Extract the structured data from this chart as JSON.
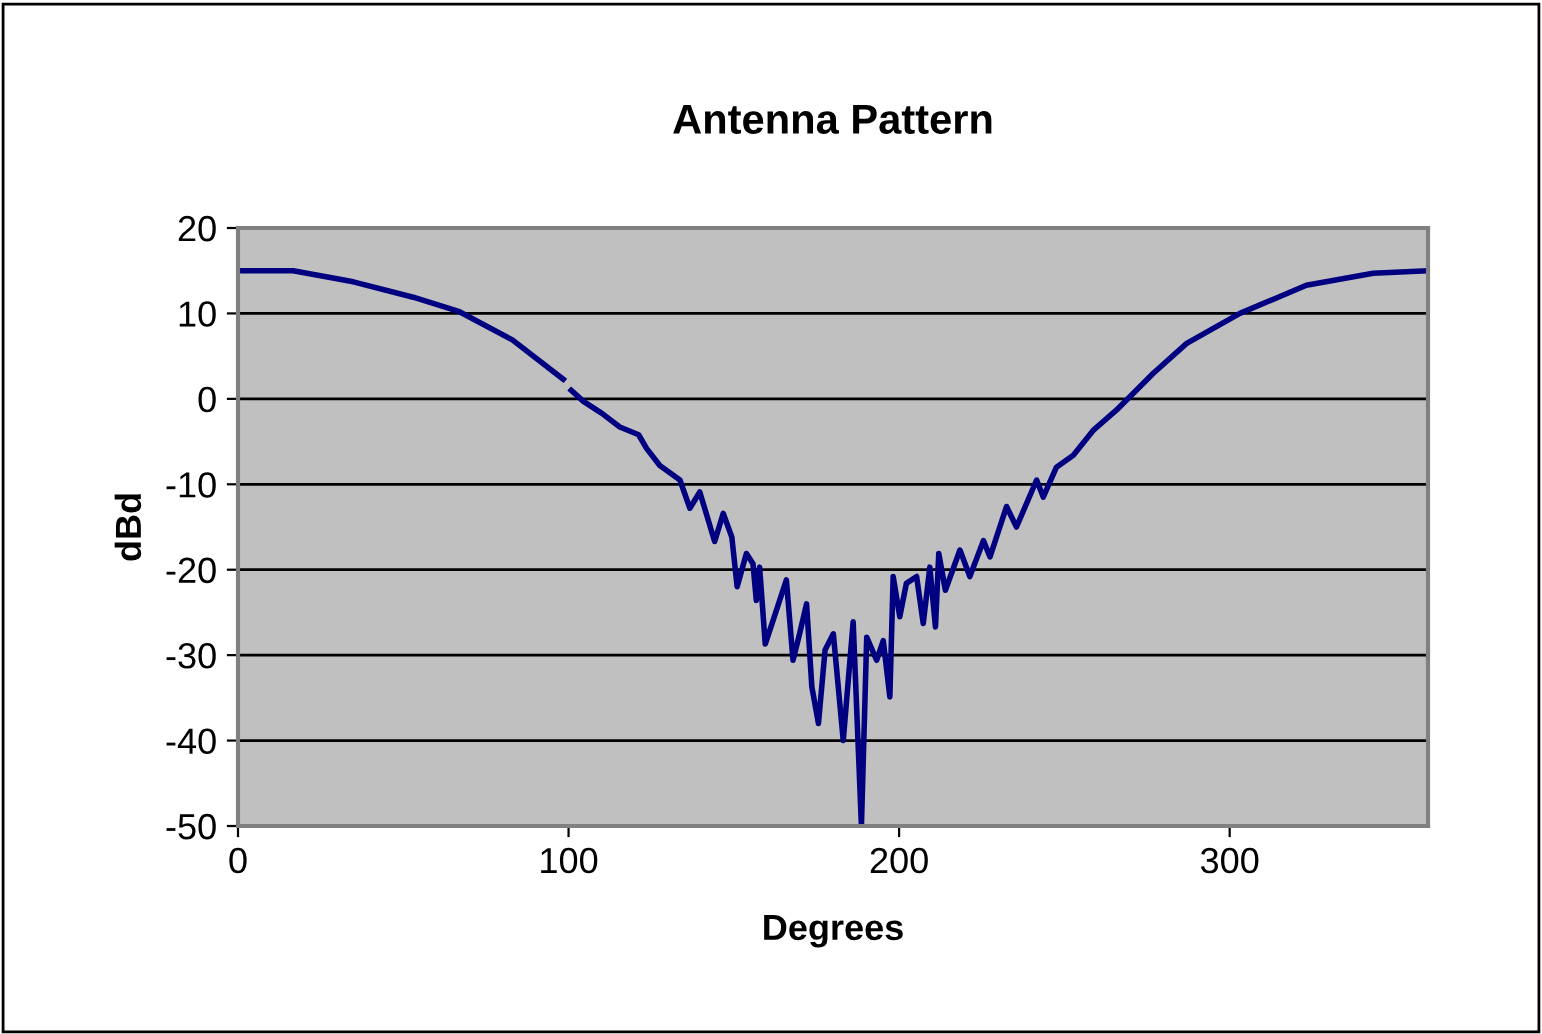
{
  "chart_data": {
    "type": "line",
    "title": "Antenna Pattern",
    "xlabel": "Degrees",
    "ylabel": "dBd",
    "xlim": [
      0,
      360
    ],
    "xticks": [
      0,
      100,
      200,
      300
    ],
    "ylim": [
      -50,
      20
    ],
    "yticks": [
      -50,
      -40,
      -30,
      -20,
      -10,
      0,
      10,
      20
    ],
    "grid": "y",
    "legend": false,
    "series": [
      {
        "color": "#000080",
        "x": [
          0,
          16.7,
          34.9,
          53,
          67,
          83,
          98.4,
          99.5,
          100.8,
          104.5,
          110.1,
          115.5,
          121.2,
          123.6,
          127.6,
          133.7,
          136.7,
          139.7,
          144.2,
          146.8,
          149.4,
          151,
          153.8,
          155.8,
          156.8,
          157.8,
          159.5,
          161.9,
          165.9,
          167.9,
          169.9,
          172,
          173.6,
          175.6,
          177.6,
          180.1,
          183.1,
          186.1,
          188.6,
          190.2,
          193.2,
          195.2,
          197.2,
          198.2,
          200.2,
          202.2,
          205.3,
          207.3,
          209.3,
          211,
          212,
          214,
          218.4,
          221.4,
          225.5,
          227.5,
          232.5,
          235.5,
          241.6,
          243.6,
          247.6,
          252.7,
          258.7,
          265.8,
          276.9,
          287,
          303.1,
          323.2,
          343.4,
          360
        ],
        "values": [
          15,
          15,
          13.7,
          11.9,
          10.2,
          6.9,
          2.3,
          null,
          1.0,
          -0.3,
          -1.7,
          -3.3,
          -4.2,
          -5.8,
          -7.8,
          -9.5,
          -12.8,
          -10.9,
          -16.7,
          -13.4,
          -16.2,
          -22.0,
          -18.1,
          -19.3,
          -23.6,
          -19.7,
          -28.7,
          -25.9,
          -21.2,
          -30.6,
          -27.5,
          -24.0,
          -33.7,
          -38.0,
          -29.4,
          -27.5,
          -40.0,
          -26.1,
          -50,
          -27.9,
          -30.6,
          -28.3,
          -34.9,
          -20.8,
          -25.5,
          -21.6,
          -20.8,
          -26.3,
          -19.7,
          -26.7,
          -18.1,
          -22.4,
          -17.7,
          -20.8,
          -16.6,
          -18.5,
          -12.6,
          -15.0,
          -9.5,
          -11.5,
          -8.0,
          -6.6,
          -3.7,
          -1.3,
          3.0,
          6.5,
          10.0,
          13.3,
          14.7,
          15
        ]
      }
    ]
  }
}
